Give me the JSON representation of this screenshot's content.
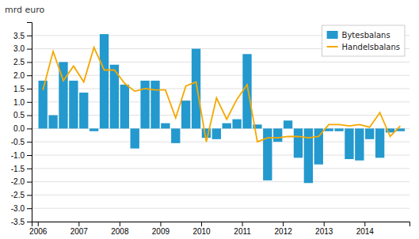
{
  "chart_data": {
    "type": "bar",
    "y_label": "mrd euro",
    "x": [
      2006.125,
      2006.375,
      2006.625,
      2006.875,
      2007.125,
      2007.375,
      2007.625,
      2007.875,
      2008.125,
      2008.375,
      2008.625,
      2008.875,
      2009.125,
      2009.375,
      2009.625,
      2009.875,
      2010.125,
      2010.375,
      2010.625,
      2010.875,
      2011.125,
      2011.375,
      2011.625,
      2011.875,
      2012.125,
      2012.375,
      2012.625,
      2012.875,
      2013.125,
      2013.375,
      2013.625,
      2013.875,
      2014.125,
      2014.375,
      2014.625,
      2014.875
    ],
    "series": [
      {
        "name": "Bytesbalans",
        "type": "bar",
        "color": "#2399ce",
        "values": [
          1.8,
          0.5,
          2.5,
          1.8,
          1.35,
          -0.1,
          3.55,
          2.4,
          1.65,
          -0.75,
          1.8,
          1.8,
          0.2,
          -0.55,
          1.05,
          3.0,
          -0.35,
          -0.4,
          0.2,
          0.35,
          2.8,
          0.15,
          -1.95,
          -0.5,
          0.3,
          -1.1,
          -2.05,
          -1.35,
          -0.1,
          -0.1,
          -1.15,
          -1.2,
          -0.4,
          -1.1,
          -0.15,
          -0.1
        ]
      },
      {
        "name": "Handelsbalans",
        "type": "line",
        "color": "#f5a800",
        "values": [
          1.45,
          2.9,
          1.8,
          2.35,
          1.75,
          3.05,
          2.2,
          2.2,
          1.7,
          1.4,
          1.5,
          1.45,
          1.45,
          0.4,
          1.6,
          1.75,
          -0.5,
          1.15,
          0.35,
          1.1,
          1.65,
          -0.5,
          -0.35,
          -0.35,
          -0.3,
          -0.3,
          -0.35,
          -0.3,
          0.15,
          0.15,
          0.1,
          0.15,
          0.05,
          0.6,
          -0.3,
          0.1
        ]
      }
    ],
    "xlim": [
      2005.85,
      2015.1
    ],
    "xticks": [
      2006,
      2007,
      2008,
      2009,
      2010,
      2011,
      2012,
      2013,
      2014
    ],
    "ylim": [
      -3.5,
      4.0
    ],
    "yticks": [
      -3.5,
      {
        "value": -3.0,
        "label": "-3.0"
      },
      -2.5,
      {
        "value": -2.0,
        "label": "-2.0"
      },
      -1.5,
      {
        "value": -1.0,
        "label": "-1.0"
      },
      -0.5,
      {
        "value": 0.0,
        "label": "0.0"
      },
      0.5,
      {
        "value": 1.0,
        "label": "1.0"
      },
      1.5,
      {
        "value": 2.0,
        "label": "2.0"
      },
      2.5,
      {
        "value": 3.0,
        "label": "3.0"
      },
      3.5
    ],
    "grid": true,
    "legend": "upper right"
  }
}
